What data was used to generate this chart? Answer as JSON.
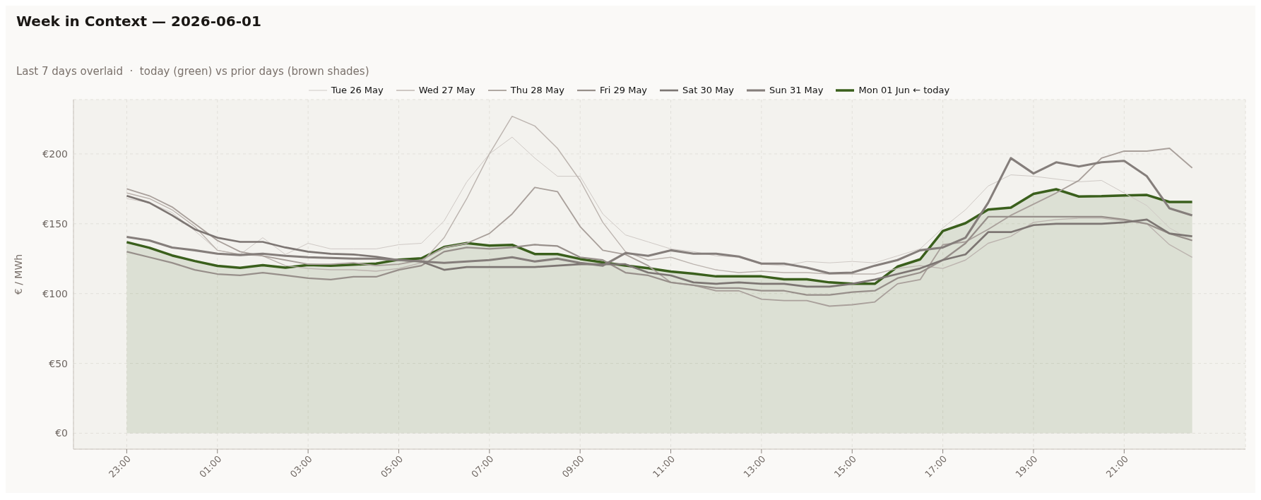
{
  "chart_data": {
    "type": "line",
    "title": "Week in Context — 2026-06-01",
    "subtitle": "Last 7 days overlaid  ·  today (green) vs prior days (brown shades)",
    "ylabel": "€ / MWh",
    "categories": [
      "23:00",
      null,
      null,
      null,
      "01:00",
      null,
      null,
      null,
      "03:00",
      null,
      null,
      null,
      "05:00",
      null,
      null,
      null,
      "07:00",
      null,
      null,
      null,
      "09:00",
      null,
      null,
      null,
      "11:00",
      null,
      null,
      null,
      "13:00",
      null,
      null,
      null,
      "15:00",
      null,
      null,
      null,
      "17:00",
      null,
      null,
      null,
      "19:00",
      null,
      null,
      null,
      "21:00",
      null,
      null,
      null
    ],
    "ylim": [
      -11.4,
      238.9
    ],
    "yticks": [
      {
        "value": 0,
        "label": "€0"
      },
      {
        "value": 50,
        "label": "€50"
      },
      {
        "value": 100,
        "label": "€100"
      },
      {
        "value": 150,
        "label": "€150"
      },
      {
        "value": 200,
        "label": "€200"
      }
    ],
    "grid": true,
    "legend": "top",
    "series": [
      {
        "name": "Tue 26 May",
        "color": "#cfc9c5",
        "values": [
          168,
          165,
          158,
          145,
          131,
          128,
          140,
          128,
          136,
          132,
          132,
          132,
          135,
          136,
          152,
          180,
          200,
          212,
          197,
          184,
          184,
          157,
          142,
          137,
          132,
          130,
          127,
          126,
          121,
          120,
          123,
          122,
          123,
          122,
          127,
          132,
          147,
          160,
          177,
          185,
          184,
          182,
          180,
          181,
          172,
          163,
          147,
          138
        ]
      },
      {
        "name": "Wed 27 May",
        "color": "#bcb4af",
        "values": [
          172,
          168,
          160,
          148,
          131,
          128,
          127,
          120,
          118,
          117,
          117,
          116,
          118,
          122,
          140,
          168,
          200,
          227,
          220,
          204,
          181,
          151,
          130,
          124,
          126,
          121,
          117,
          115,
          116,
          115,
          115,
          114,
          114,
          114,
          118,
          120,
          118,
          124,
          136,
          141,
          151,
          153,
          154,
          154,
          152,
          150,
          135,
          126
        ]
      },
      {
        "name": "Thu 28 May",
        "color": "#a9a09b",
        "values": [
          175,
          170,
          162,
          150,
          138,
          130,
          127,
          124,
          121,
          121,
          122,
          120,
          121,
          124,
          133,
          136,
          143,
          157,
          176,
          173,
          148,
          131,
          128,
          120,
          108,
          106,
          102,
          102,
          96,
          95,
          95,
          91,
          92,
          94,
          107,
          110,
          135,
          137,
          146,
          156,
          164,
          172,
          181,
          197,
          202,
          202,
          204,
          190
        ]
      },
      {
        "name": "Fri 29 May",
        "color": "#978f8a",
        "values": [
          130,
          126,
          122,
          117,
          114,
          113,
          115,
          113,
          111,
          110,
          112,
          112,
          117,
          120,
          130,
          133,
          132,
          133,
          135,
          134,
          126,
          124,
          115,
          113,
          108,
          106,
          104,
          104,
          102,
          102,
          99,
          99,
          101,
          102,
          111,
          115,
          124,
          136,
          155,
          155,
          155,
          155,
          155,
          155,
          153,
          150,
          143,
          138
        ]
      },
      {
        "name": "Sat 30 May",
        "color": "#7d7673",
        "values": [
          170,
          165,
          156,
          146,
          140,
          137,
          137,
          133,
          130,
          128.5,
          128,
          126.4,
          124,
          123,
          117,
          119,
          119,
          119,
          119,
          120,
          121,
          121,
          121,
          115,
          113,
          108,
          107,
          108,
          107,
          107,
          105,
          105,
          107,
          110,
          114,
          118,
          124,
          128,
          144,
          144,
          149,
          150,
          150,
          150,
          151,
          153,
          143,
          141
        ]
      },
      {
        "name": "Sun 31 May",
        "color": "#857e7b",
        "values": [
          140.5,
          138,
          133,
          131,
          128.5,
          127.6,
          128.5,
          127,
          126,
          125.5,
          125,
          125,
          124,
          123,
          122,
          123,
          124,
          126,
          123,
          125,
          122,
          120,
          129,
          127,
          131,
          128.5,
          128.5,
          126.5,
          121.5,
          121.5,
          118.5,
          114.5,
          115,
          120,
          124,
          131,
          133,
          140,
          165,
          197,
          186,
          194,
          191,
          194,
          195,
          184,
          161,
          156
        ]
      },
      {
        "name": "Mon 01 Jun  ← today",
        "type": "area",
        "color": "#3a5f1c",
        "values": [
          136.8,
          132.8,
          127.3,
          123.3,
          119.8,
          118.4,
          120.3,
          118.6,
          120.5,
          120,
          120.7,
          121.5,
          124.3,
          125.2,
          133.3,
          136.1,
          134.4,
          134.9,
          128.3,
          128.3,
          124.8,
          122.4,
          120.1,
          118.2,
          115.8,
          114.2,
          112.3,
          112.3,
          112.3,
          110.2,
          110.2,
          108,
          107,
          107,
          119.3,
          124.5,
          144.8,
          150.4,
          160.2,
          161.5,
          171.4,
          174.7,
          169.5,
          169.7,
          170.3,
          170.6,
          165.6,
          165.6
        ]
      }
    ]
  }
}
